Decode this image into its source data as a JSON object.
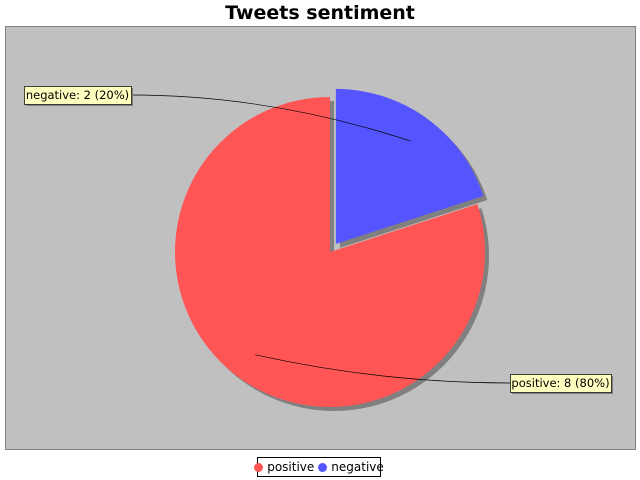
{
  "chart_data": {
    "type": "pie",
    "title": "Tweets sentiment",
    "slices": [
      {
        "name": "positive",
        "value": 8,
        "percent": 80,
        "color": "#ff5555",
        "label": "positive: 8 (80%)",
        "exploded": false
      },
      {
        "name": "negative",
        "value": 2,
        "percent": 20,
        "color": "#5555ff",
        "label": "negative: 2 (20%)",
        "exploded": true
      }
    ],
    "legend": {
      "position": "bottom",
      "items": [
        {
          "name": "positive",
          "color": "#ff5555"
        },
        {
          "name": "negative",
          "color": "#5555ff"
        }
      ]
    },
    "plot_background": "#c0c0c0",
    "label_background": "#ffffc0"
  }
}
